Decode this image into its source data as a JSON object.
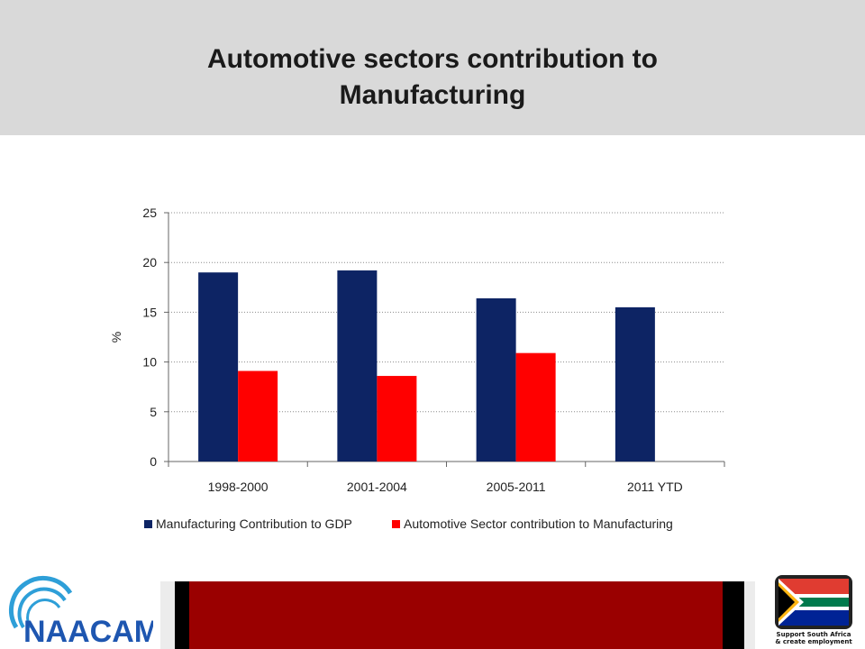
{
  "header": {
    "title_line1": "Automotive sectors contribution to",
    "title_line2": "Manufacturing"
  },
  "chart_data": {
    "type": "bar",
    "categories": [
      "1998-2000",
      "2001-2004",
      "2005-2011",
      "2011 YTD"
    ],
    "series": [
      {
        "name": "Manufacturing Contribution to GDP",
        "values": [
          19.0,
          19.2,
          16.4,
          15.5
        ],
        "color": "#0d2464"
      },
      {
        "name": "Automotive Sector contribution to Manufacturing",
        "values": [
          9.1,
          8.6,
          10.9,
          null
        ],
        "color": "#ff0000"
      }
    ],
    "ylabel": "%",
    "ylim": [
      0,
      25
    ],
    "yticks": [
      0,
      5,
      10,
      15,
      20,
      25
    ],
    "grid": true,
    "legend_position": "bottom"
  },
  "footer": {
    "logo_left_text": "NAACAM",
    "logo_right_line1": "Support South Africa",
    "logo_right_line2": "& create employment",
    "colors": {
      "bar_red": "#9a0000",
      "bar_black": "#000000",
      "logo_blue": "#1e56b0",
      "logo_ring": "#2e9fd8"
    }
  }
}
